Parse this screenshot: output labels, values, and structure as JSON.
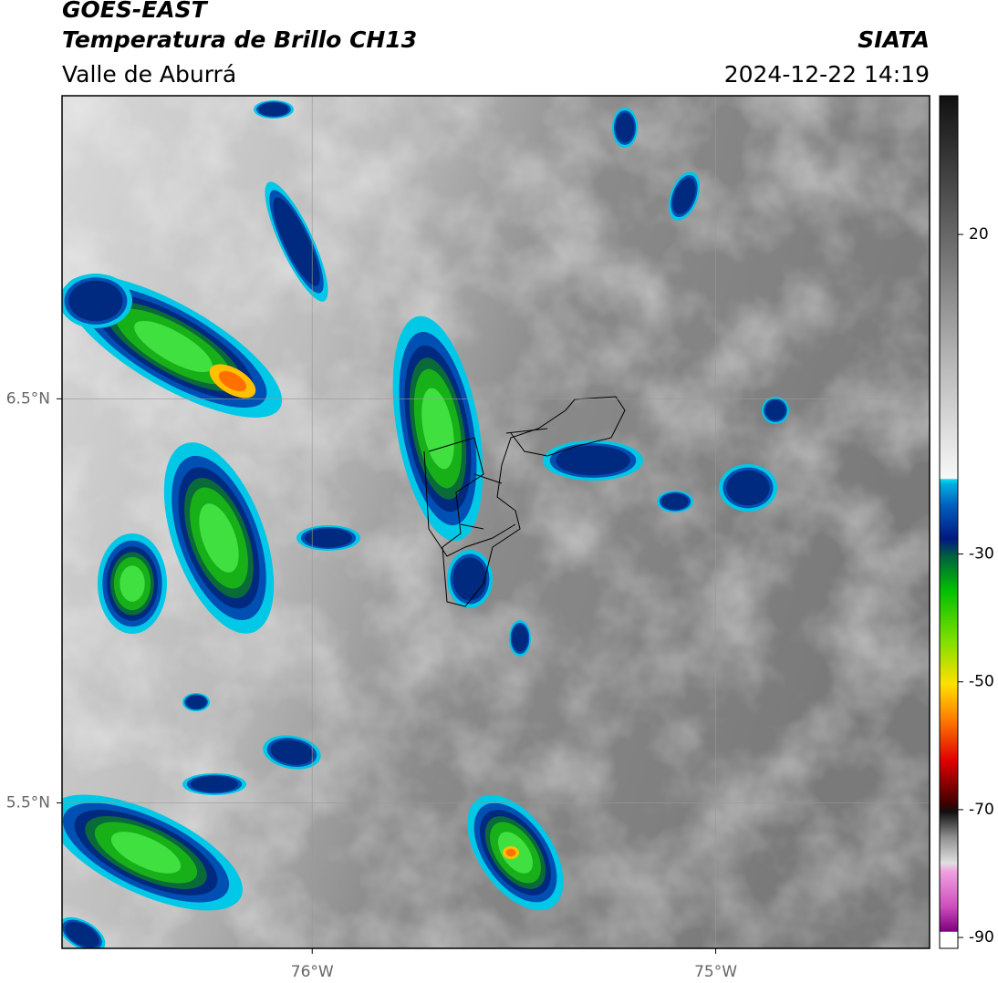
{
  "header": {
    "title": "GOES-EAST",
    "subtitle": "Temperatura de Brillo CH13",
    "region": "Valle de Aburrá",
    "source": "SIATA",
    "datetime": "2024-12-22 14:19"
  },
  "map": {
    "xlim": [
      -76.62,
      -74.47
    ],
    "ylim": [
      5.14,
      7.25
    ],
    "xticks": [
      {
        "value": -76,
        "label": "76°W"
      },
      {
        "value": -75,
        "label": "75°W"
      }
    ],
    "yticks": [
      {
        "value": 6.5,
        "label": "6.5°N"
      },
      {
        "value": 5.5,
        "label": "5.5°N"
      }
    ],
    "grid": true
  },
  "colorbar": {
    "lim": [
      -91.7,
      41.7
    ],
    "ticks": [
      20,
      -30,
      -50,
      -70,
      -90
    ]
  }
}
